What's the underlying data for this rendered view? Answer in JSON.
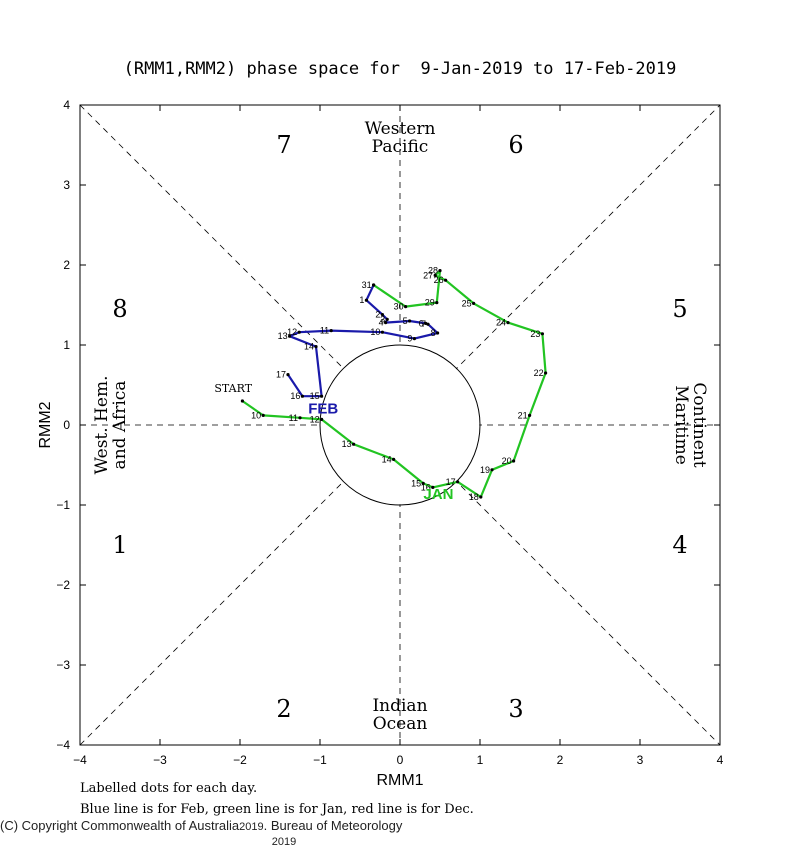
{
  "title": "(RMM1,RMM2) phase space for  9-Jan-2019 to 17-Feb-2019",
  "chart_data": {
    "type": "line",
    "xlabel": "RMM1",
    "ylabel": "RMM2",
    "xlim": [
      -4,
      4
    ],
    "ylim": [
      -4,
      4
    ],
    "xticks": [
      "-4",
      "-3",
      "-2",
      "-1",
      "0",
      "1",
      "2",
      "3",
      "4"
    ],
    "yticks": [
      "-4",
      "-3",
      "-2",
      "-1",
      "0",
      "1",
      "2",
      "3",
      "4"
    ],
    "unit_circle_radius": 1,
    "phase_numbers": [
      {
        "label": "1",
        "x": -3.5,
        "y": -1.5
      },
      {
        "label": "2",
        "x": -1.45,
        "y": -3.55
      },
      {
        "label": "3",
        "x": 1.45,
        "y": -3.55
      },
      {
        "label": "4",
        "x": 3.5,
        "y": -1.5
      },
      {
        "label": "5",
        "x": 3.5,
        "y": 1.45
      },
      {
        "label": "6",
        "x": 1.45,
        "y": 3.5
      },
      {
        "label": "7",
        "x": -1.45,
        "y": 3.5
      },
      {
        "label": "8",
        "x": -3.5,
        "y": 1.45
      }
    ],
    "region_labels": {
      "top": [
        "Western",
        "Pacific"
      ],
      "bottom": [
        "Indian",
        "Ocean"
      ],
      "left": [
        "West. Hem.",
        "and Africa"
      ],
      "right": [
        "Maritime",
        "Continent"
      ]
    },
    "start_label": "START",
    "month_labels": [
      {
        "text": "JAN",
        "x": 0.48,
        "y": -0.85,
        "color": "#22c422"
      },
      {
        "text": "FEB",
        "x": -0.96,
        "y": 0.22,
        "color": "#1a1aaa"
      }
    ],
    "series": [
      {
        "name": "Jan",
        "color": "#22c422",
        "points": [
          {
            "day": "",
            "x": -1.97,
            "y": 0.3
          },
          {
            "day": "10",
            "x": -1.71,
            "y": 0.12
          },
          {
            "day": "11",
            "x": -1.25,
            "y": 0.09
          },
          {
            "day": "12",
            "x": -0.98,
            "y": 0.07
          },
          {
            "day": "13",
            "x": -0.58,
            "y": -0.24
          },
          {
            "day": "14",
            "x": -0.08,
            "y": -0.43
          },
          {
            "day": "15",
            "x": 0.29,
            "y": -0.73
          },
          {
            "day": "16",
            "x": 0.41,
            "y": -0.78
          },
          {
            "day": "17",
            "x": 0.72,
            "y": -0.71
          },
          {
            "day": "18",
            "x": 1.01,
            "y": -0.9
          },
          {
            "day": "19",
            "x": 1.15,
            "y": -0.56
          },
          {
            "day": "20",
            "x": 1.42,
            "y": -0.45
          },
          {
            "day": "21",
            "x": 1.62,
            "y": 0.12
          },
          {
            "day": "22",
            "x": 1.82,
            "y": 0.65
          },
          {
            "day": "23",
            "x": 1.78,
            "y": 1.14
          },
          {
            "day": "24",
            "x": 1.35,
            "y": 1.28
          },
          {
            "day": "25",
            "x": 0.92,
            "y": 1.52
          },
          {
            "day": "26",
            "x": 0.57,
            "y": 1.81
          },
          {
            "day": "27",
            "x": 0.44,
            "y": 1.87
          },
          {
            "day": "28",
            "x": 0.5,
            "y": 1.93
          },
          {
            "day": "29",
            "x": 0.46,
            "y": 1.53
          },
          {
            "day": "30",
            "x": 0.07,
            "y": 1.48
          },
          {
            "day": "31",
            "x": -0.33,
            "y": 1.75
          }
        ]
      },
      {
        "name": "Feb",
        "color": "#1a1aaa",
        "points": [
          {
            "day": "",
            "x": -0.33,
            "y": 1.75
          },
          {
            "day": "1",
            "x": -0.42,
            "y": 1.56
          },
          {
            "day": "2",
            "x": -0.22,
            "y": 1.38
          },
          {
            "day": "3",
            "x": -0.16,
            "y": 1.32
          },
          {
            "day": "4",
            "x": -0.18,
            "y": 1.28
          },
          {
            "day": "5",
            "x": 0.12,
            "y": 1.3
          },
          {
            "day": "6",
            "x": 0.32,
            "y": 1.27
          },
          {
            "day": "7",
            "x": 0.35,
            "y": 1.26
          },
          {
            "day": "8",
            "x": 0.47,
            "y": 1.15
          },
          {
            "day": "9",
            "x": 0.18,
            "y": 1.08
          },
          {
            "day": "10",
            "x": -0.22,
            "y": 1.16
          },
          {
            "day": "11",
            "x": -0.86,
            "y": 1.18
          },
          {
            "day": "12",
            "x": -1.26,
            "y": 1.16
          },
          {
            "day": "13",
            "x": -1.38,
            "y": 1.11
          },
          {
            "day": "14",
            "x": -1.05,
            "y": 0.98
          },
          {
            "day": "15",
            "x": -0.98,
            "y": 0.36
          },
          {
            "day": "16",
            "x": -1.22,
            "y": 0.36
          },
          {
            "day": "17",
            "x": -1.4,
            "y": 0.63
          }
        ]
      }
    ]
  },
  "footer": {
    "line1": "Labelled dots for each day.",
    "line2": "Blue line is for Feb, green line is for Jan, red line is for Dec.",
    "copyright": "(C) Copyright Commonwealth of Australia",
    "year_inline": "2019",
    "bureau": ". Bureau of Meteorology",
    "year_below": "2019"
  }
}
